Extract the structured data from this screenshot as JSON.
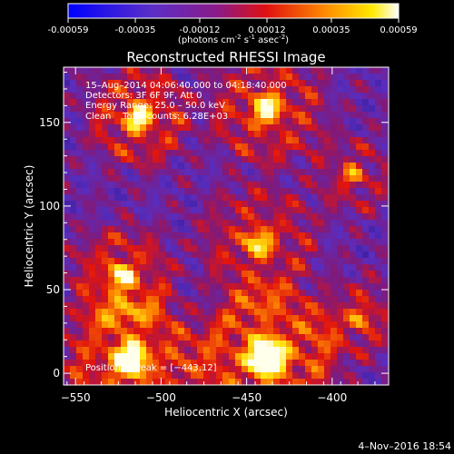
{
  "colorbar": {
    "ticks": [
      "-0.00059",
      "-0.00035",
      "-0.00012",
      "0.00012",
      "0.00035",
      "0.00059"
    ],
    "tick_values": [
      -0.00059,
      -0.00035,
      -0.00012,
      0.00012,
      0.00035,
      0.00059
    ],
    "range": [
      -0.00059,
      0.00059
    ],
    "units_prefix": "(photons cm",
    "units_exp1": "-2",
    "units_mid": " s",
    "units_exp2": "-1",
    "units_mid2": " asec",
    "units_exp3": "-2",
    "units_suffix": ")"
  },
  "chart_data": {
    "type": "heatmap",
    "title": "Reconstructed RHESSI Image",
    "xlabel": "Heliocentric X (arcsec)",
    "ylabel": "Heliocentric Y (arcsec)",
    "xlim": [
      -557,
      -367
    ],
    "ylim": [
      -7,
      183
    ],
    "x_ticks": [
      -550,
      -500,
      -450,
      -400
    ],
    "x_tick_labels": [
      "−550",
      "−500",
      "−450",
      "−400"
    ],
    "y_ticks": [
      0,
      50,
      100,
      150
    ],
    "y_tick_labels": [
      "0",
      "50",
      "100",
      "150"
    ],
    "info_lines": [
      "15–Aug–2014 04:06:40.000 to 04:18:40.000",
      "Detectors: 3F 6F 9F, Att 0",
      "Energy Range: 25.0 – 50.0 keV",
      "Clean    Total counts: 6.28E+03"
    ],
    "peak_label": "Position of Peak = [−443,12]",
    "peak": [
      -443,
      12
    ],
    "colormap": "blue-purple-red-yellow-white"
  },
  "timestamp": "4–Nov–2016 18:54"
}
